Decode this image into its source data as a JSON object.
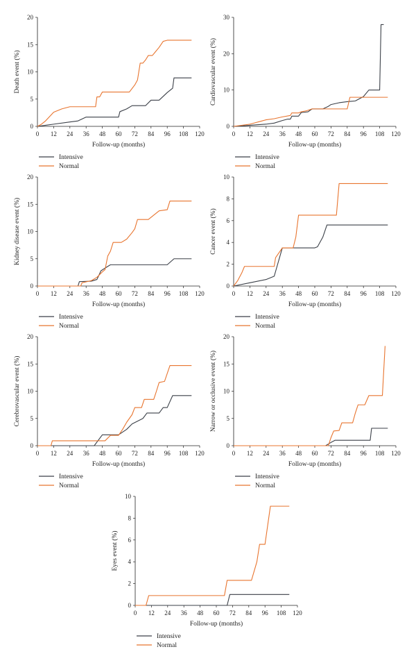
{
  "colors": {
    "intensive": "#3a3f47",
    "normal": "#e8742e",
    "axis": "#222222"
  },
  "chart_data": [
    {
      "type": "line",
      "xlabel": "Follow-up (months)",
      "ylabel": "Death event (%)",
      "xlim": [
        0,
        120
      ],
      "ylim": [
        0,
        20
      ],
      "xticks": [
        0,
        12,
        24,
        36,
        48,
        60,
        72,
        84,
        96,
        108,
        120
      ],
      "yticks": [
        0,
        5,
        10,
        15,
        20
      ],
      "legend": "below",
      "series": [
        {
          "name": "Intensive",
          "color": "#3a3f47",
          "points": [
            [
              0,
              0
            ],
            [
              6,
              0.2
            ],
            [
              12,
              0.4
            ],
            [
              24,
              0.8
            ],
            [
              30,
              1.0
            ],
            [
              36,
              1.7
            ],
            [
              48,
              1.7
            ],
            [
              60,
              1.7
            ],
            [
              61,
              2.7
            ],
            [
              66,
              3.2
            ],
            [
              70,
              3.8
            ],
            [
              80,
              3.8
            ],
            [
              84,
              4.8
            ],
            [
              90,
              4.8
            ],
            [
              96,
              6.2
            ],
            [
              100,
              7.0
            ],
            [
              101,
              8.9
            ],
            [
              114,
              8.9
            ]
          ]
        },
        {
          "name": "Normal",
          "color": "#e8742e",
          "points": [
            [
              0,
              0
            ],
            [
              3,
              0.4
            ],
            [
              6,
              1.0
            ],
            [
              9,
              1.8
            ],
            [
              12,
              2.6
            ],
            [
              18,
              3.2
            ],
            [
              24,
              3.6
            ],
            [
              43,
              3.6
            ],
            [
              44,
              5.4
            ],
            [
              46,
              5.4
            ],
            [
              48,
              6.3
            ],
            [
              68,
              6.3
            ],
            [
              72,
              7.6
            ],
            [
              74,
              8.5
            ],
            [
              76,
              11.6
            ],
            [
              78,
              11.6
            ],
            [
              80,
              12.2
            ],
            [
              82,
              13.0
            ],
            [
              85,
              13.0
            ],
            [
              87,
              13.6
            ],
            [
              90,
              14.5
            ],
            [
              93,
              15.6
            ],
            [
              96,
              15.8
            ],
            [
              114,
              15.8
            ]
          ]
        }
      ]
    },
    {
      "type": "line",
      "xlabel": "Follow-up (months)",
      "ylabel": "Cardiovascular event (%)",
      "xlim": [
        0,
        120
      ],
      "ylim": [
        0,
        30
      ],
      "xticks": [
        0,
        12,
        24,
        36,
        48,
        60,
        72,
        84,
        96,
        108,
        120
      ],
      "yticks": [
        0,
        10,
        20,
        30
      ],
      "legend": "below",
      "series": [
        {
          "name": "Intensive",
          "color": "#3a3f47",
          "points": [
            [
              0,
              0
            ],
            [
              12,
              0.3
            ],
            [
              24,
              0.6
            ],
            [
              30,
              0.9
            ],
            [
              36,
              1.6
            ],
            [
              40,
              2.0
            ],
            [
              42,
              2.0
            ],
            [
              43,
              2.8
            ],
            [
              48,
              2.8
            ],
            [
              50,
              3.8
            ],
            [
              55,
              4.0
            ],
            [
              58,
              4.8
            ],
            [
              66,
              4.8
            ],
            [
              70,
              5.5
            ],
            [
              72,
              6.0
            ],
            [
              78,
              6.5
            ],
            [
              84,
              6.8
            ],
            [
              90,
              7.0
            ],
            [
              96,
              8.2
            ],
            [
              100,
              10.0
            ],
            [
              108,
              10.0
            ],
            [
              109,
              28.0
            ],
            [
              111,
              28.0
            ]
          ]
        },
        {
          "name": "Normal",
          "color": "#e8742e",
          "points": [
            [
              0,
              0
            ],
            [
              12,
              0.6
            ],
            [
              16,
              1.0
            ],
            [
              20,
              1.4
            ],
            [
              24,
              1.8
            ],
            [
              30,
              2.1
            ],
            [
              36,
              2.6
            ],
            [
              42,
              3.0
            ],
            [
              43,
              3.7
            ],
            [
              48,
              3.7
            ],
            [
              50,
              4.0
            ],
            [
              54,
              4.3
            ],
            [
              58,
              4.8
            ],
            [
              66,
              4.8
            ],
            [
              84,
              4.8
            ],
            [
              86,
              8.0
            ],
            [
              114,
              8.0
            ]
          ]
        }
      ]
    },
    {
      "type": "line",
      "xlabel": "Follow-up (months)",
      "ylabel": "Kidney disease event (%)",
      "xlim": [
        0,
        120
      ],
      "ylim": [
        0,
        20
      ],
      "xticks": [
        0,
        12,
        24,
        36,
        48,
        60,
        72,
        84,
        96,
        108,
        120
      ],
      "yticks": [
        0,
        5,
        10,
        15,
        20
      ],
      "legend": "below",
      "series": [
        {
          "name": "Intensive",
          "color": "#3a3f47",
          "points": [
            [
              0,
              0
            ],
            [
              30,
              0
            ],
            [
              31,
              0.8
            ],
            [
              40,
              0.9
            ],
            [
              44,
              1.2
            ],
            [
              47,
              2.8
            ],
            [
              52,
              3.6
            ],
            [
              54,
              3.9
            ],
            [
              60,
              3.9
            ],
            [
              96,
              3.9
            ],
            [
              101,
              5.0
            ],
            [
              114,
              5.0
            ]
          ]
        },
        {
          "name": "Normal",
          "color": "#e8742e",
          "points": [
            [
              0,
              0
            ],
            [
              32,
              0
            ],
            [
              33,
              0.6
            ],
            [
              40,
              1.0
            ],
            [
              44,
              1.6
            ],
            [
              48,
              2.6
            ],
            [
              50,
              3.0
            ],
            [
              52,
              5.5
            ],
            [
              54,
              6.4
            ],
            [
              56,
              8.0
            ],
            [
              62,
              8.0
            ],
            [
              66,
              8.6
            ],
            [
              70,
              9.8
            ],
            [
              72,
              10.5
            ],
            [
              74,
              12.2
            ],
            [
              82,
              12.2
            ],
            [
              86,
              13.0
            ],
            [
              90,
              13.8
            ],
            [
              96,
              14.0
            ],
            [
              98,
              15.6
            ],
            [
              114,
              15.6
            ]
          ]
        }
      ]
    },
    {
      "type": "line",
      "xlabel": "Follow-up (months)",
      "ylabel": "Cancer event (%)",
      "xlim": [
        0,
        120
      ],
      "ylim": [
        0,
        10
      ],
      "xticks": [
        0,
        12,
        24,
        36,
        48,
        60,
        72,
        84,
        96,
        108,
        120
      ],
      "yticks": [
        0,
        2,
        4,
        6,
        8,
        10
      ],
      "legend": "below",
      "series": [
        {
          "name": "Intensive",
          "color": "#3a3f47",
          "points": [
            [
              0,
              0
            ],
            [
              12,
              0.3
            ],
            [
              24,
              0.6
            ],
            [
              30,
              0.9
            ],
            [
              36,
              3.5
            ],
            [
              60,
              3.5
            ],
            [
              62,
              3.6
            ],
            [
              66,
              4.5
            ],
            [
              69,
              5.6
            ],
            [
              114,
              5.6
            ]
          ]
        },
        {
          "name": "Normal",
          "color": "#e8742e",
          "points": [
            [
              0,
              0
            ],
            [
              3,
              0.5
            ],
            [
              6,
              1.2
            ],
            [
              8,
              1.8
            ],
            [
              30,
              1.8
            ],
            [
              31,
              2.6
            ],
            [
              36,
              3.5
            ],
            [
              44,
              3.5
            ],
            [
              46,
              4.5
            ],
            [
              48,
              6.5
            ],
            [
              76,
              6.5
            ],
            [
              78,
              9.4
            ],
            [
              114,
              9.4
            ]
          ]
        }
      ]
    },
    {
      "type": "line",
      "xlabel": "Follow-up (months)",
      "ylabel": "Cerebrovascular event (%)",
      "xlim": [
        0,
        120
      ],
      "ylim": [
        0,
        20
      ],
      "xticks": [
        0,
        12,
        24,
        36,
        48,
        60,
        72,
        84,
        96,
        108,
        120
      ],
      "yticks": [
        0,
        5,
        10,
        15,
        20
      ],
      "legend": "below",
      "series": [
        {
          "name": "Intensive",
          "color": "#3a3f47",
          "points": [
            [
              0,
              0
            ],
            [
              42,
              0
            ],
            [
              48,
              2.0
            ],
            [
              60,
              2.0
            ],
            [
              66,
              3.0
            ],
            [
              70,
              4.0
            ],
            [
              78,
              5.0
            ],
            [
              81,
              6.0
            ],
            [
              90,
              6.0
            ],
            [
              93,
              7.0
            ],
            [
              96,
              7.0
            ],
            [
              100,
              9.2
            ],
            [
              114,
              9.2
            ]
          ]
        },
        {
          "name": "Normal",
          "color": "#e8742e",
          "points": [
            [
              0,
              0
            ],
            [
              10,
              0
            ],
            [
              11,
              0.9
            ],
            [
              50,
              0.9
            ],
            [
              54,
              1.9
            ],
            [
              60,
              1.9
            ],
            [
              63,
              3.0
            ],
            [
              66,
              4.3
            ],
            [
              70,
              5.7
            ],
            [
              72,
              7.0
            ],
            [
              77,
              7.0
            ],
            [
              79,
              8.5
            ],
            [
              86,
              8.5
            ],
            [
              88,
              10.0
            ],
            [
              90,
              11.6
            ],
            [
              94,
              11.8
            ],
            [
              98,
              14.7
            ],
            [
              114,
              14.7
            ]
          ]
        }
      ]
    },
    {
      "type": "line",
      "xlabel": "Follow-up (months)",
      "ylabel": "Narrow or occlusive event (%)",
      "xlim": [
        0,
        120
      ],
      "ylim": [
        0,
        20
      ],
      "xticks": [
        0,
        12,
        24,
        36,
        48,
        60,
        72,
        84,
        96,
        108,
        120
      ],
      "yticks": [
        0,
        5,
        10,
        15,
        20
      ],
      "legend": "below",
      "series": [
        {
          "name": "Intensive",
          "color": "#3a3f47",
          "points": [
            [
              0,
              0
            ],
            [
              68,
              0
            ],
            [
              72,
              0.6
            ],
            [
              75,
              1.0
            ],
            [
              101,
              1.0
            ],
            [
              102,
              3.2
            ],
            [
              114,
              3.2
            ]
          ]
        },
        {
          "name": "Normal",
          "color": "#e8742e",
          "points": [
            [
              0,
              0
            ],
            [
              70,
              0
            ],
            [
              72,
              1.5
            ],
            [
              74,
              2.7
            ],
            [
              78,
              2.8
            ],
            [
              80,
              4.2
            ],
            [
              88,
              4.2
            ],
            [
              90,
              6.0
            ],
            [
              92,
              7.5
            ],
            [
              97,
              7.5
            ],
            [
              100,
              9.2
            ],
            [
              110,
              9.2
            ],
            [
              112,
              18.3
            ]
          ]
        }
      ]
    },
    {
      "type": "line",
      "xlabel": "Follow-up (months)",
      "ylabel": "Eyes event (%)",
      "xlim": [
        0,
        120
      ],
      "ylim": [
        0,
        10
      ],
      "xticks": [
        0,
        12,
        24,
        36,
        48,
        60,
        72,
        84,
        96,
        108,
        120
      ],
      "yticks": [
        0,
        2,
        4,
        6,
        8,
        10
      ],
      "legend": "below",
      "series": [
        {
          "name": "Intensive",
          "color": "#3a3f47",
          "points": [
            [
              0,
              0
            ],
            [
              68,
              0
            ],
            [
              70,
              1.0
            ],
            [
              114,
              1.0
            ]
          ]
        },
        {
          "name": "Normal",
          "color": "#e8742e",
          "points": [
            [
              0,
              0
            ],
            [
              8,
              0
            ],
            [
              10,
              0.9
            ],
            [
              66,
              0.9
            ],
            [
              68,
              2.3
            ],
            [
              86,
              2.3
            ],
            [
              90,
              4.0
            ],
            [
              92,
              5.6
            ],
            [
              96,
              5.6
            ],
            [
              100,
              9.1
            ],
            [
              114,
              9.1
            ]
          ]
        }
      ]
    }
  ]
}
